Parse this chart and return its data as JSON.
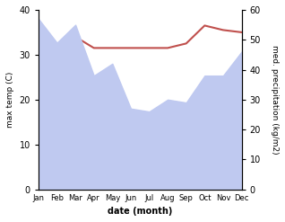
{
  "months": [
    "Jan",
    "Feb",
    "Mar",
    "Apr",
    "May",
    "Jun",
    "Jul",
    "Aug",
    "Sep",
    "Oct",
    "Nov",
    "Dec"
  ],
  "month_indices": [
    0,
    1,
    2,
    3,
    4,
    5,
    6,
    7,
    8,
    9,
    10,
    11
  ],
  "temp_max": [
    32.5,
    32.0,
    34.0,
    31.5,
    31.5,
    31.5,
    31.5,
    31.5,
    32.5,
    36.5,
    35.5,
    35.0
  ],
  "precipitation": [
    57,
    49,
    55,
    38,
    42,
    27,
    26,
    30,
    29,
    38,
    38,
    46
  ],
  "temp_ylim": [
    0,
    40
  ],
  "precip_ylim": [
    0,
    60
  ],
  "temp_color": "#c0504d",
  "precip_fill_color": "#bfc9f0",
  "xlabel": "date (month)",
  "ylabel_left": "max temp (C)",
  "ylabel_right": "med. precipitation (kg/m2)",
  "background_color": "#ffffff",
  "fig_width": 3.18,
  "fig_height": 2.47,
  "dpi": 100
}
